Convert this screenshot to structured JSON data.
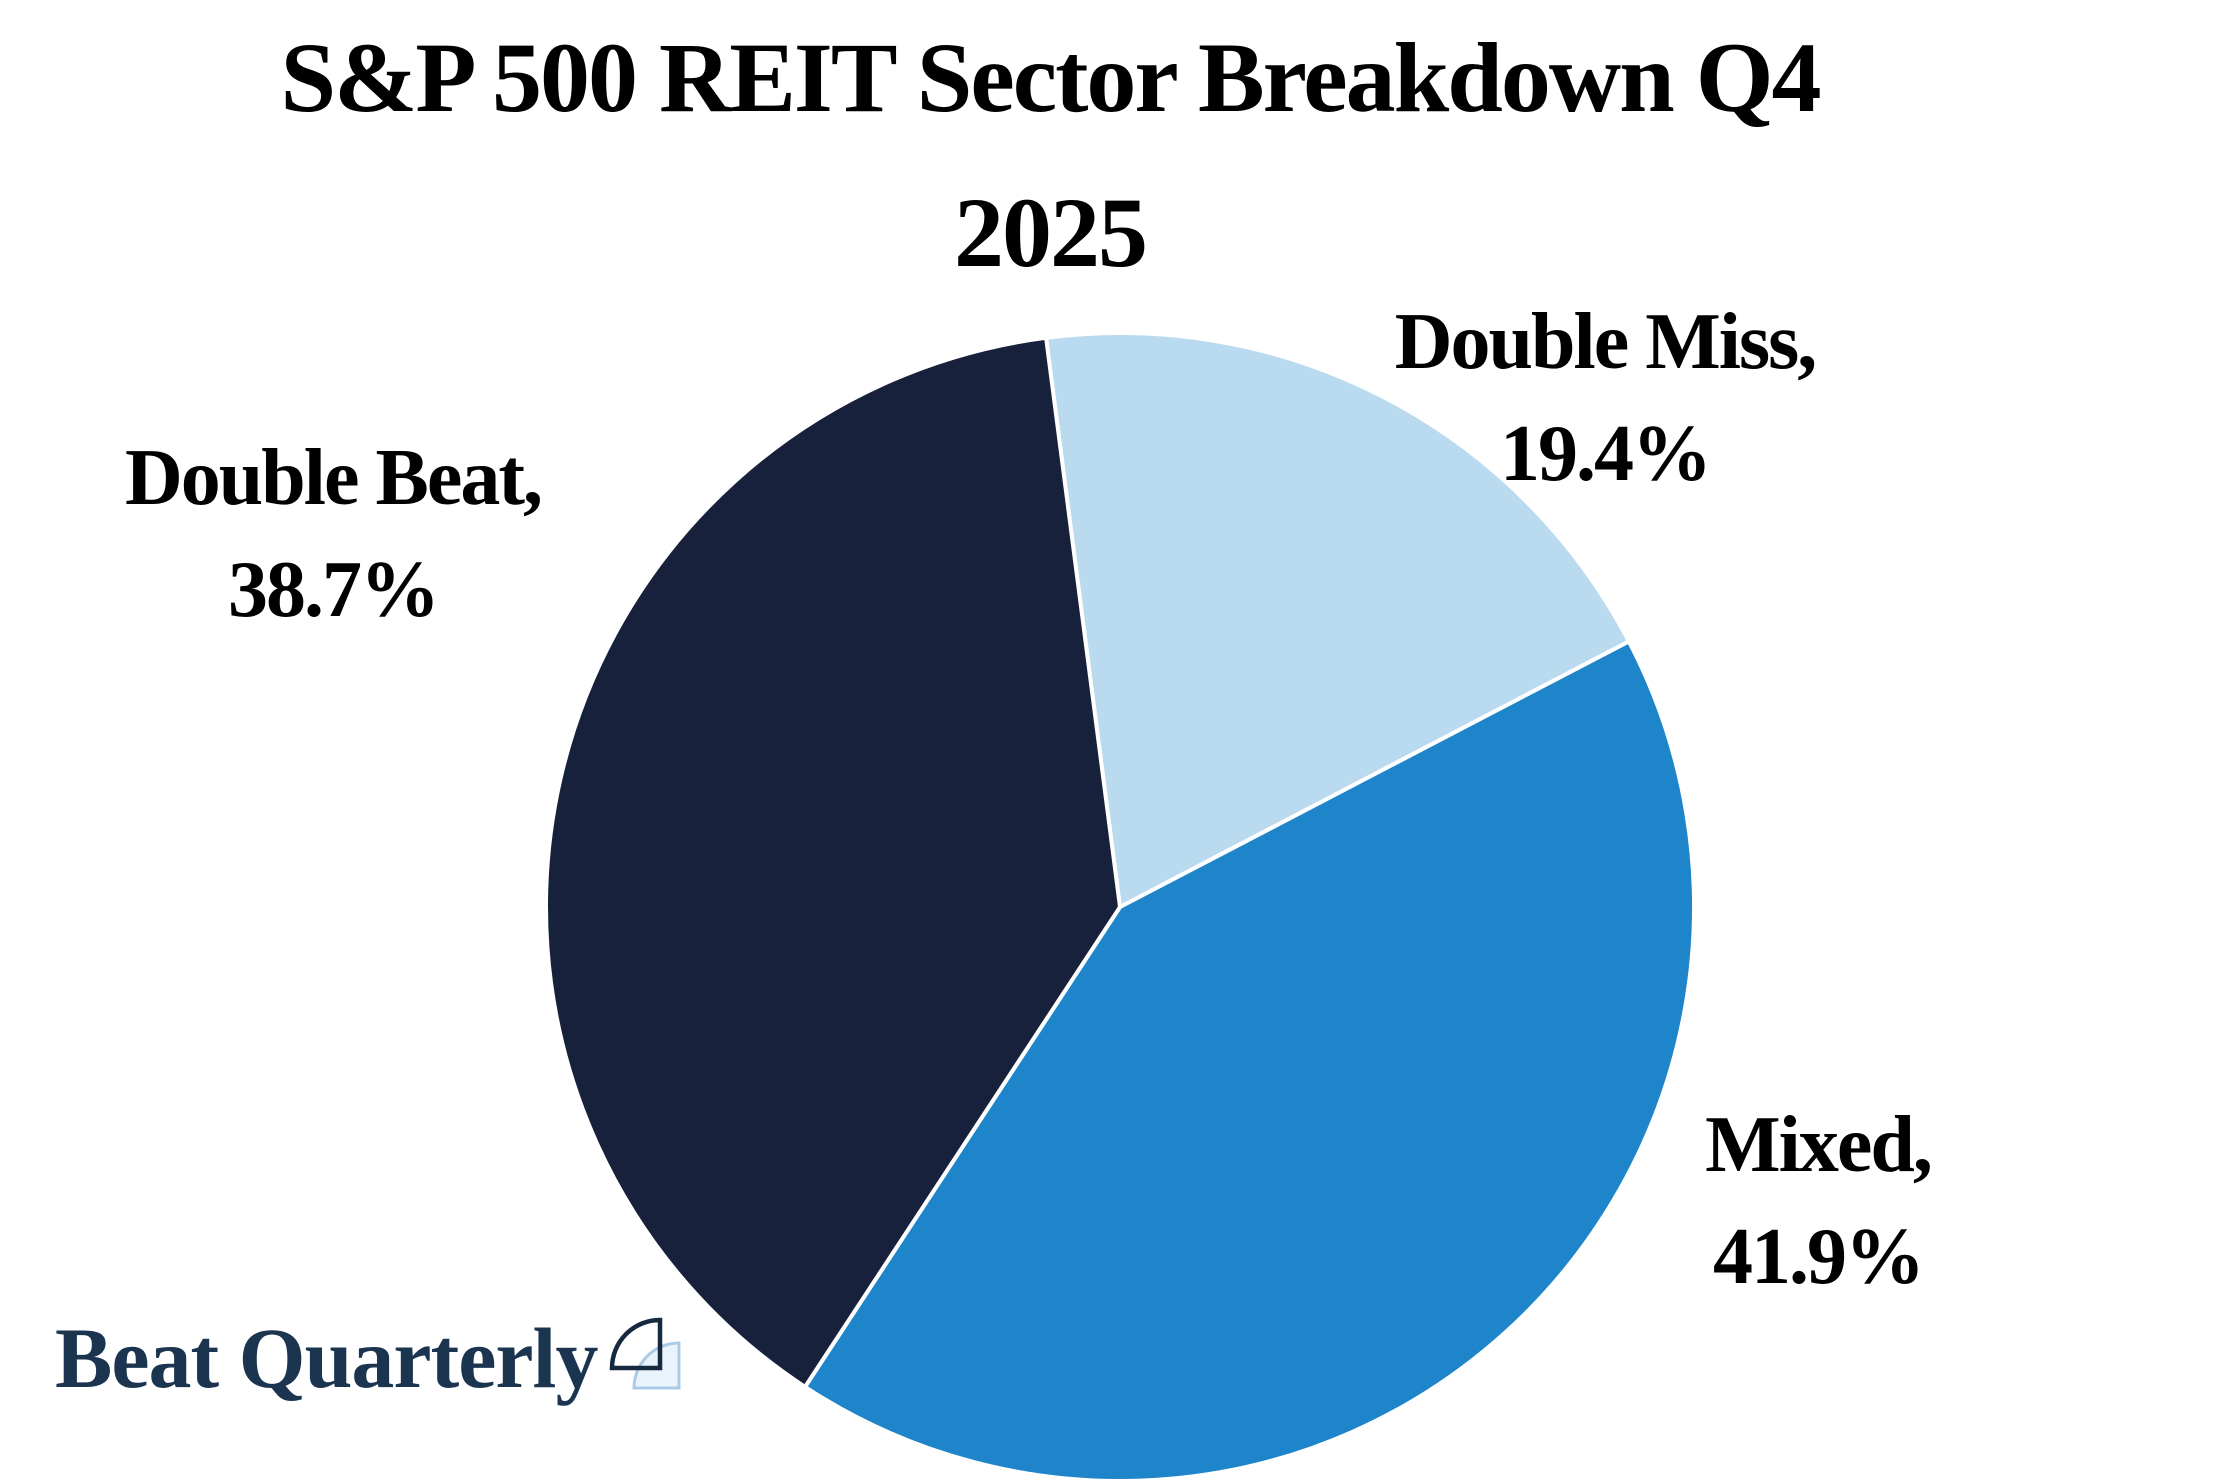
{
  "page": {
    "background_color": "#ffffff"
  },
  "title": {
    "line1": "S&P 500 REIT Sector Breakdown Q4",
    "line2": "2025",
    "full": "S&P 500 REIT Sector Breakdown Q4 2025"
  },
  "logo": {
    "text": "Beat Quarterly",
    "color": "#1B3551",
    "icon": "quarter-circle-pair-icon",
    "icon_dark_stroke": "#16293E",
    "icon_light_stroke": "#A9CBE8",
    "icon_light_fill": "#EAF3FB"
  },
  "chart_data": {
    "type": "pie",
    "title": "S&P 500 REIT Sector Breakdown Q4 2025",
    "unit": "percent",
    "direction": "clockwise",
    "start_angle_deg": -7.4,
    "legend": "none",
    "labels_position": "outside",
    "slice_separator_color": "#ffffff",
    "slices": [
      {
        "name": "Double Miss",
        "value": 19.4,
        "color": "#BADAF0",
        "display_label": "Double Miss,",
        "display_value": "19.4%"
      },
      {
        "name": "Mixed",
        "value": 41.9,
        "color": "#1E85CB",
        "display_label": "Mixed,",
        "display_value": "41.9%"
      },
      {
        "name": "Double Beat",
        "value": 38.7,
        "color": "#18213C",
        "display_label": "Double Beat,",
        "display_value": "38.7%"
      }
    ]
  }
}
